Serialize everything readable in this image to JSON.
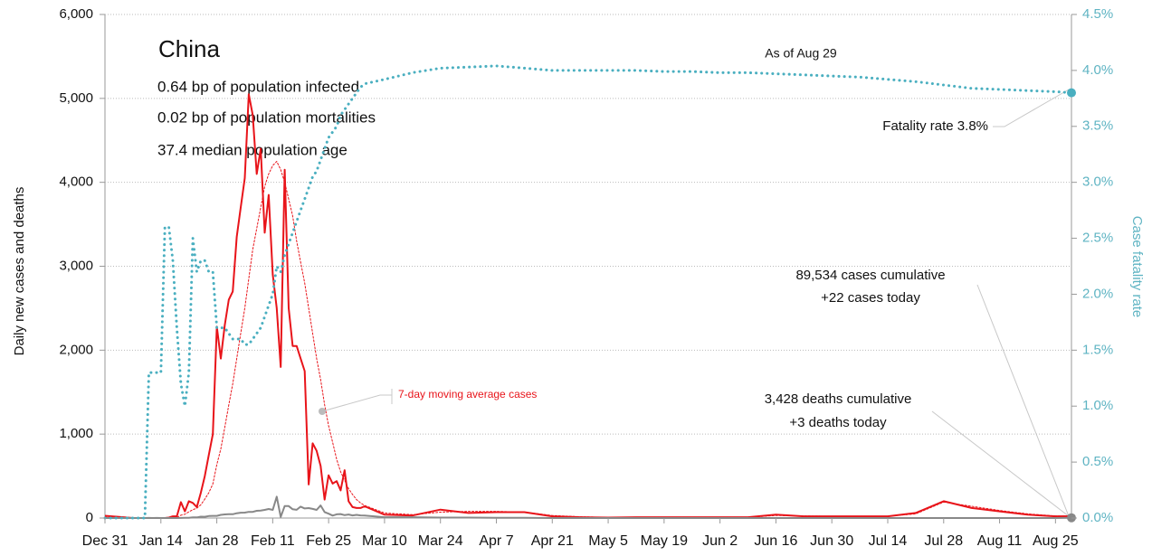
{
  "chart_data": {
    "type": "line",
    "title": "China",
    "stats": [
      "0.64 bp of population infected",
      "0.02 bp of population mortalities",
      "37.4 median population age"
    ],
    "ylabel": "Daily new cases and deaths",
    "y2label": "Case fatality rate",
    "annotations": {
      "as_of": "As of Aug 29",
      "fatality": "Fatality rate 3.8%",
      "cases_cum": "89,534 cases cumulative",
      "cases_today": "+22 cases today",
      "deaths_cum": "3,428 deaths cumulative",
      "deaths_today": "+3 deaths today",
      "moving_avg": "7-day moving average cases"
    },
    "x": [
      "Dec 31",
      "Jan 7",
      "Jan 10",
      "Jan 11",
      "Jan 12",
      "Jan 13",
      "Jan 14",
      "Jan 15",
      "Jan 16",
      "Jan 17",
      "Jan 18",
      "Jan 19",
      "Jan 20",
      "Jan 21",
      "Jan 22",
      "Jan 23",
      "Jan 24",
      "Jan 25",
      "Jan 26",
      "Jan 27",
      "Jan 28",
      "Jan 29",
      "Jan 30",
      "Jan 31",
      "Feb 1",
      "Feb 2",
      "Feb 3",
      "Feb 4",
      "Feb 5",
      "Feb 6",
      "Feb 7",
      "Feb 8",
      "Feb 9",
      "Feb 10",
      "Feb 11",
      "Feb 12",
      "Feb 13",
      "Feb 14",
      "Feb 15",
      "Feb 16",
      "Feb 17",
      "Feb 18",
      "Feb 19",
      "Feb 20",
      "Feb 21",
      "Feb 22",
      "Feb 23",
      "Feb 24",
      "Feb 25",
      "Feb 26",
      "Feb 27",
      "Feb 28",
      "Feb 29",
      "Mar 1",
      "Mar 2",
      "Mar 3",
      "Mar 4",
      "Mar 5",
      "Mar 10",
      "Mar 17",
      "Mar 24",
      "Mar 31",
      "Apr 7",
      "Apr 14",
      "Apr 21",
      "Apr 28",
      "May 5",
      "May 12",
      "May 19",
      "May 26",
      "Jun 2",
      "Jun 9",
      "Jun 16",
      "Jun 23",
      "Jun 30",
      "Jul 7",
      "Jul 14",
      "Jul 21",
      "Jul 28",
      "Aug 4",
      "Aug 11",
      "Aug 18",
      "Aug 25",
      "Aug 29"
    ],
    "series": [
      {
        "color": "#e8141a",
        "style": "solid",
        "width": 2,
        "values": [
          27,
          0,
          0,
          0,
          0,
          0,
          0,
          0,
          5,
          20,
          20,
          190,
          80,
          200,
          180,
          130,
          300,
          500,
          750,
          1000,
          2280,
          1900,
          2300,
          2600,
          2700,
          3350,
          3700,
          4050,
          5050,
          4800,
          4100,
          4400,
          3400,
          3850,
          2900,
          2500,
          1800,
          4150,
          2500,
          2050,
          2050,
          1900,
          1750,
          400,
          890,
          800,
          620,
          220,
          510,
          410,
          440,
          330,
          570,
          200,
          130,
          120,
          120,
          140,
          40,
          30,
          100,
          60,
          70,
          70,
          20,
          10,
          5,
          10,
          10,
          10,
          10,
          10,
          40,
          20,
          20,
          20,
          20,
          60,
          200,
          120,
          80,
          40,
          20,
          22
        ]
      },
      {
        "color": "#e8141a",
        "style": "dotted",
        "width": 1,
        "values": [
          10,
          2,
          0,
          0,
          0,
          0,
          0,
          0,
          1,
          4,
          6,
          33,
          45,
          74,
          99,
          117,
          157,
          225,
          301,
          406,
          637,
          823,
          1081,
          1346,
          1600,
          1900,
          2200,
          2500,
          2850,
          3200,
          3450,
          3700,
          3950,
          4100,
          4200,
          4250,
          4150,
          4000,
          3800,
          3600,
          3300,
          3050,
          2800,
          2500,
          2200,
          1900,
          1650,
          1350,
          1100,
          900,
          700,
          550,
          450,
          350,
          280,
          220,
          180,
          150,
          60,
          40,
          70,
          80,
          80,
          70,
          30,
          15,
          8,
          8,
          10,
          10,
          10,
          10,
          30,
          25,
          20,
          20,
          20,
          50,
          190,
          140,
          90,
          50,
          25,
          20
        ]
      },
      {
        "color": "#888888",
        "style": "solid",
        "width": 2,
        "values": [
          0,
          0,
          0,
          1,
          0,
          1,
          0,
          0,
          1,
          0,
          0,
          1,
          3,
          3,
          8,
          8,
          16,
          15,
          24,
          26,
          26,
          38,
          43,
          46,
          45,
          57,
          64,
          65,
          73,
          73,
          86,
          89,
          97,
          108,
          97,
          254,
          13,
          143,
          142,
          105,
          98,
          136,
          114,
          118,
          109,
          97,
          150,
          71,
          52,
          29,
          44,
          47,
          35,
          42,
          31,
          38,
          31,
          30,
          10,
          10,
          5,
          5,
          2,
          3,
          0,
          0,
          0,
          0,
          0,
          0,
          0,
          0,
          0,
          0,
          0,
          0,
          0,
          0,
          0,
          0,
          0,
          0,
          0,
          3
        ]
      },
      {
        "color": "#4aafc0",
        "style": "dotted",
        "width": 3,
        "axis": "y2",
        "values": [
          0,
          0,
          0,
          1.3,
          1.3,
          1.3,
          1.3,
          2.6,
          2.6,
          2.3,
          1.7,
          1.2,
          1.0,
          1.3,
          2.5,
          2.2,
          2.3,
          2.3,
          2.2,
          2.2,
          1.7,
          1.7,
          1.7,
          1.65,
          1.6,
          1.6,
          1.6,
          1.55,
          1.55,
          1.6,
          1.65,
          1.7,
          1.8,
          1.9,
          2.0,
          2.25,
          2.2,
          2.35,
          2.45,
          2.55,
          2.65,
          2.75,
          2.85,
          2.95,
          3.05,
          3.1,
          3.2,
          3.3,
          3.4,
          3.45,
          3.5,
          3.6,
          3.65,
          3.7,
          3.75,
          3.8,
          3.85,
          3.88,
          3.92,
          3.98,
          4.02,
          4.03,
          4.04,
          4.02,
          4.0,
          4.0,
          4.0,
          4.0,
          3.99,
          3.99,
          3.98,
          3.98,
          3.97,
          3.96,
          3.95,
          3.94,
          3.92,
          3.9,
          3.87,
          3.84,
          3.83,
          3.82,
          3.81,
          3.8
        ]
      }
    ],
    "xlim": [
      "Dec 31",
      "Aug 29"
    ],
    "xticks": [
      "Dec 31",
      "Jan 14",
      "Jan 28",
      "Feb 11",
      "Feb 25",
      "Mar 10",
      "Mar 24",
      "Apr 7",
      "Apr 21",
      "May 5",
      "May 19",
      "Jun 2",
      "Jun 16",
      "Jun 30",
      "Jul 14",
      "Jul 28",
      "Aug 11",
      "Aug 25"
    ],
    "ylim": [
      0,
      6000
    ],
    "yticks": [
      0,
      {
        "value": 1000,
        "label": "1,000"
      },
      {
        "value": 2000,
        "label": "2,000"
      },
      {
        "value": 3000,
        "label": "3,000"
      },
      {
        "value": 4000,
        "label": "4,000"
      },
      {
        "value": 5000,
        "label": "5,000"
      },
      {
        "value": 6000,
        "label": "6,000"
      }
    ],
    "y2lim": [
      0,
      4.5
    ],
    "y2ticks": [
      {
        "value": 0,
        "label": "0.0%"
      },
      {
        "value": 0.5,
        "label": "0.5%"
      },
      {
        "value": 1,
        "label": "1.0%"
      },
      {
        "value": 1.5,
        "label": "1.5%"
      },
      {
        "value": 2,
        "label": "2.0%"
      },
      {
        "value": 2.5,
        "label": "2.5%"
      },
      {
        "value": 3,
        "label": "3.0%"
      },
      {
        "value": 3.5,
        "label": "3.5%"
      },
      {
        "value": 4,
        "label": "4.0%"
      },
      {
        "value": 4.5,
        "label": "4.5%"
      }
    ],
    "grid": true
  }
}
